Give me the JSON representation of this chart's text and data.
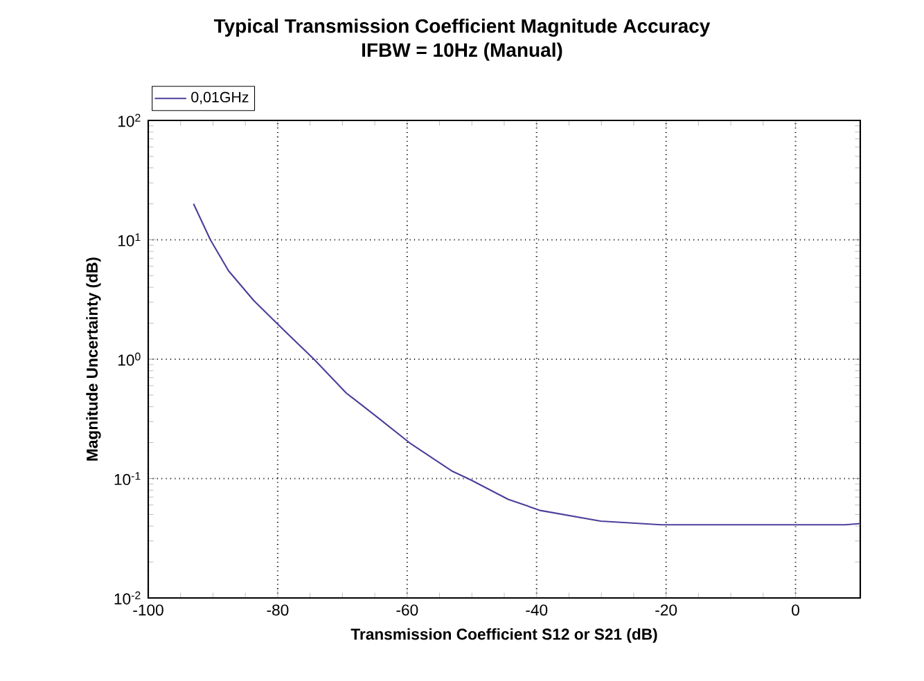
{
  "chart_data": {
    "type": "line",
    "title": "Typical Transmission Coefficient Magnitude Accuracy",
    "subtitle": "IFBW = 10Hz (Manual)",
    "xlabel": "Transmission Coefficient S12 or S21 (dB)",
    "ylabel": "Magnitude Uncertainty (dB)",
    "x": [
      -93,
      -90.4,
      -87.6,
      -83.7,
      -79,
      -74.4,
      -69.4,
      -64.4,
      -59.4,
      -53,
      -50.1,
      -44.4,
      -39.4,
      -30.1,
      -20.8,
      7.7,
      10
    ],
    "series": [
      {
        "name": "0,01GHz",
        "color": "#4b3f9a",
        "values": [
          20,
          10,
          5.5,
          3.1,
          1.74,
          1.0,
          0.52,
          0.32,
          0.195,
          0.115,
          0.097,
          0.067,
          0.054,
          0.044,
          0.041,
          0.041,
          0.042
        ]
      }
    ],
    "xlim": [
      -100,
      10
    ],
    "xticks": [
      -100,
      -80,
      -60,
      -40,
      -20,
      0
    ],
    "ylim": [
      0.01,
      100
    ],
    "yticks": [
      {
        "value": 0.01,
        "label": "10$^{-2}$"
      },
      {
        "value": 0.1,
        "label": "10$^{-1}$"
      },
      {
        "value": 1,
        "label": "10$^{0}$"
      },
      {
        "value": 10,
        "label": "10$^{1}$"
      },
      {
        "value": 100,
        "label": "10$^{2}$"
      }
    ],
    "log": "y",
    "grid": true,
    "legend": "top left",
    "marker": "none",
    "line_style": "solid"
  }
}
